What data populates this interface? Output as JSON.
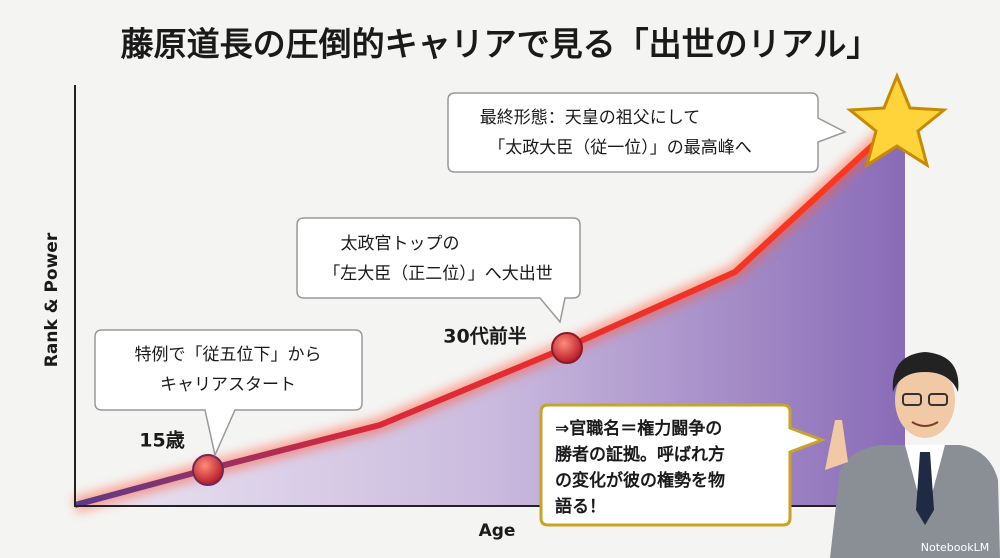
{
  "title": "藤原道長の圧倒的キャリアで見る「出世のリアル」",
  "y_axis_label": "Rank & Power",
  "x_axis_label": "Age",
  "points": [
    {
      "label": "15歳"
    },
    {
      "label": "30代前半"
    }
  ],
  "callouts": [
    {
      "lines": [
        "特例で「従五位下」から",
        "キャリアスタート"
      ]
    },
    {
      "lines": [
        "太政官トップの",
        "「左大臣（正二位）」へ大出世"
      ]
    },
    {
      "lines": [
        "最終形態：天皇の祖父にして",
        "「太政大臣（従一位）」の最高峰へ"
      ]
    }
  ],
  "note": {
    "lines": [
      "⇒官職名＝権力闘争の",
      "勝者の証拠。呼ばれ方",
      "の変化が彼の権勢を物",
      "語る！"
    ]
  },
  "watermark": "NotebookLM"
}
